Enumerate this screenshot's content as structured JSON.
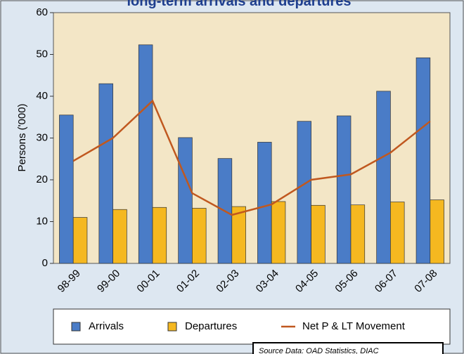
{
  "chart_data": {
    "type": "bar",
    "title": "long-term arrivals and departures",
    "y_label": "Persons ('000)",
    "source": "Source Data: OAD Statistics, DIAC",
    "categories": [
      "98-99",
      "99-00",
      "00-01",
      "01-02",
      "02-03",
      "03-04",
      "04-05",
      "05-06",
      "06-07",
      "07-08"
    ],
    "series": [
      {
        "name": "Arrivals",
        "type": "bar",
        "color": "#4a7cc7",
        "values": [
          35.5,
          43,
          52.3,
          30.1,
          25.1,
          29,
          34,
          35.3,
          41.2,
          49.2
        ]
      },
      {
        "name": "Departures",
        "type": "bar",
        "color": "#f5b820",
        "values": [
          11,
          12.9,
          13.4,
          13.2,
          13.6,
          14.8,
          13.9,
          14,
          14.7,
          15.2
        ]
      },
      {
        "name": "Net P & LT Movement",
        "type": "line",
        "color": "#c0581f",
        "values": [
          24.5,
          30,
          38.9,
          16.8,
          11.6,
          14.1,
          20,
          21.3,
          26.5,
          34
        ]
      }
    ],
    "ylim": [
      0,
      60
    ],
    "yticks": [
      0,
      10,
      20,
      30,
      40,
      50,
      60
    ],
    "legend": "bottom"
  }
}
